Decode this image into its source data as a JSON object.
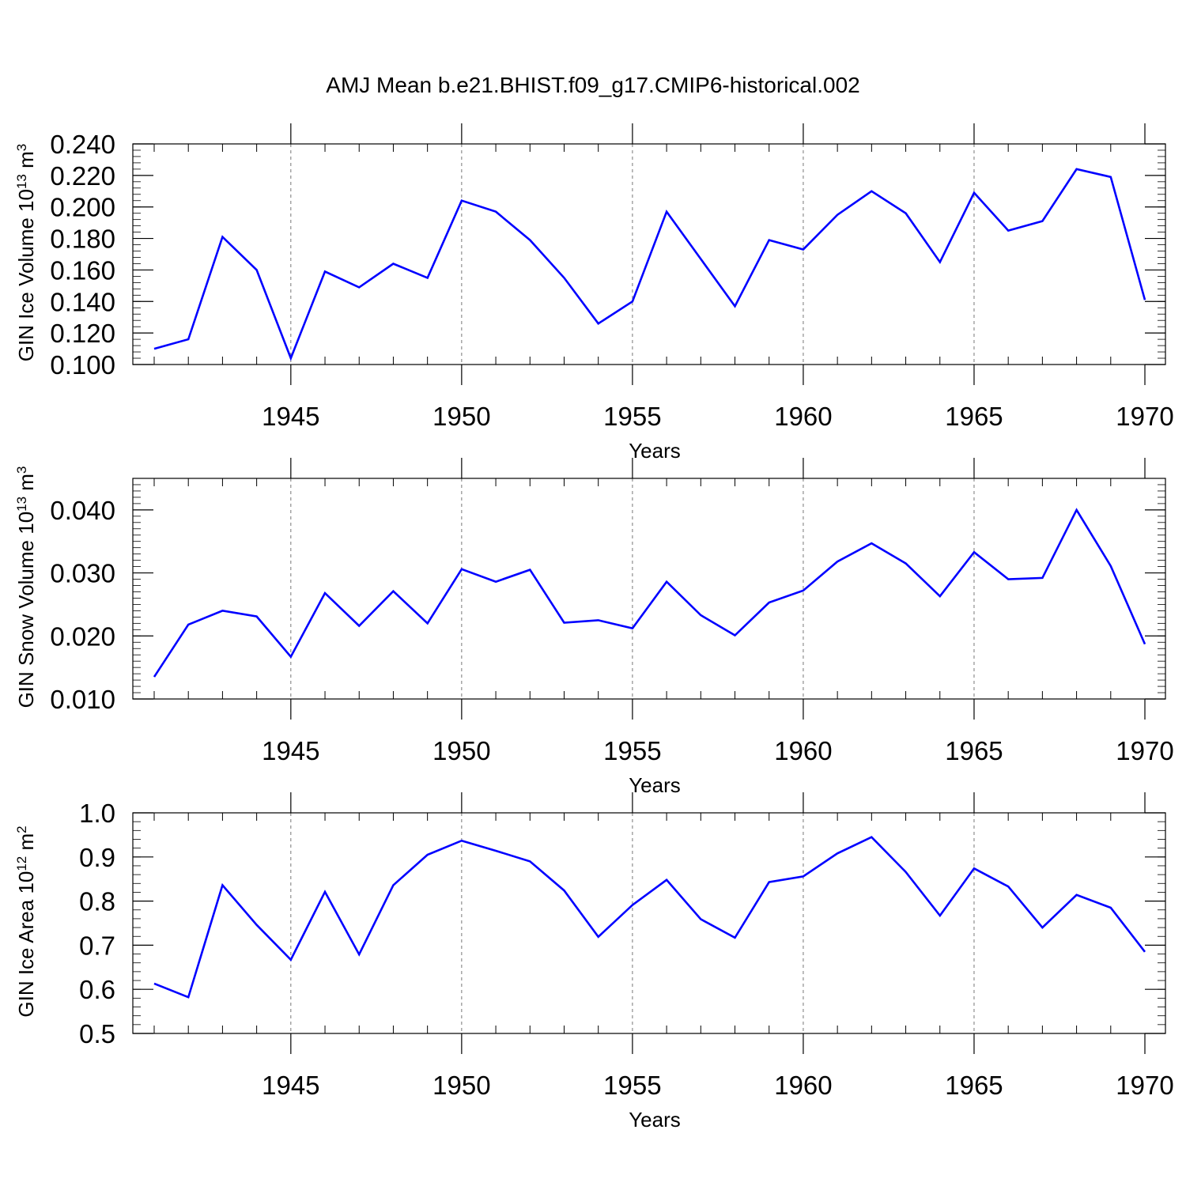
{
  "title": "AMJ Mean b.e21.BHIST.f09_g17.CMIP6-historical.002",
  "line_color": "#0000ff",
  "chart_data": [
    {
      "type": "line",
      "ylabel": "GIN Ice Volume 10",
      "ylabel_exp": "13",
      "ylabel_unit": " m",
      "ylabel_unit_exp": "3",
      "xlabel": "Years",
      "xlim": [
        1941,
        1970
      ],
      "ylim": [
        0.1,
        0.24
      ],
      "xticks": [
        1945,
        1950,
        1955,
        1960,
        1965,
        1970
      ],
      "xtick_labels": [
        "1945",
        "1950",
        "1955",
        "1960",
        "1965",
        "1970"
      ],
      "yticks": [
        0.1,
        0.12,
        0.14,
        0.16,
        0.18,
        0.2,
        0.22,
        0.24
      ],
      "ytick_labels": [
        "0.100",
        "0.120",
        "0.140",
        "0.160",
        "0.180",
        "0.200",
        "0.220",
        "0.240"
      ],
      "yminor_step": 0.004,
      "x": [
        1941,
        1942,
        1943,
        1944,
        1945,
        1946,
        1947,
        1948,
        1949,
        1950,
        1951,
        1952,
        1953,
        1954,
        1955,
        1956,
        1957,
        1958,
        1959,
        1960,
        1961,
        1962,
        1963,
        1964,
        1965,
        1966,
        1967,
        1968,
        1969,
        1970
      ],
      "values": [
        0.11,
        0.116,
        0.181,
        0.16,
        0.104,
        0.159,
        0.149,
        0.164,
        0.155,
        0.204,
        0.197,
        0.179,
        0.155,
        0.126,
        0.14,
        0.197,
        0.167,
        0.137,
        0.179,
        0.173,
        0.195,
        0.21,
        0.196,
        0.165,
        0.209,
        0.185,
        0.191,
        0.224,
        0.219,
        0.141
      ]
    },
    {
      "type": "line",
      "ylabel": "GIN Snow Volume 10",
      "ylabel_exp": "13",
      "ylabel_unit": " m",
      "ylabel_unit_exp": "3",
      "xlabel": "Years",
      "xlim": [
        1941,
        1970
      ],
      "ylim": [
        0.01,
        0.045
      ],
      "xticks": [
        1945,
        1950,
        1955,
        1960,
        1965,
        1970
      ],
      "xtick_labels": [
        "1945",
        "1950",
        "1955",
        "1960",
        "1965",
        "1970"
      ],
      "yticks": [
        0.01,
        0.02,
        0.03,
        0.04
      ],
      "ytick_labels": [
        "0.010",
        "0.020",
        "0.030",
        "0.040"
      ],
      "yminor_step": 0.001,
      "x": [
        1941,
        1942,
        1943,
        1944,
        1945,
        1946,
        1947,
        1948,
        1949,
        1950,
        1951,
        1952,
        1953,
        1954,
        1955,
        1956,
        1957,
        1958,
        1959,
        1960,
        1961,
        1962,
        1963,
        1964,
        1965,
        1966,
        1967,
        1968,
        1969,
        1970
      ],
      "values": [
        0.0135,
        0.0218,
        0.024,
        0.0231,
        0.0167,
        0.0268,
        0.0216,
        0.0271,
        0.022,
        0.0306,
        0.0286,
        0.0305,
        0.0221,
        0.0225,
        0.0212,
        0.0286,
        0.0233,
        0.0201,
        0.0253,
        0.0272,
        0.0318,
        0.0347,
        0.0315,
        0.0263,
        0.0333,
        0.029,
        0.0292,
        0.04,
        0.0311,
        0.0187
      ]
    },
    {
      "type": "line",
      "ylabel": "GIN Ice Area 10",
      "ylabel_exp": "12",
      "ylabel_unit": " m",
      "ylabel_unit_exp": "2",
      "xlabel": "Years",
      "xlim": [
        1941,
        1970
      ],
      "ylim": [
        0.5,
        1.0
      ],
      "xticks": [
        1945,
        1950,
        1955,
        1960,
        1965,
        1970
      ],
      "xtick_labels": [
        "1945",
        "1950",
        "1955",
        "1960",
        "1965",
        "1970"
      ],
      "yticks": [
        0.5,
        0.6,
        0.7,
        0.8,
        0.9,
        1.0
      ],
      "ytick_labels": [
        "0.5",
        "0.6",
        "0.7",
        "0.8",
        "0.9",
        "1.0"
      ],
      "yminor_step": 0.02,
      "x": [
        1941,
        1942,
        1943,
        1944,
        1945,
        1946,
        1947,
        1948,
        1949,
        1950,
        1951,
        1952,
        1953,
        1954,
        1955,
        1956,
        1957,
        1958,
        1959,
        1960,
        1961,
        1962,
        1963,
        1964,
        1965,
        1966,
        1967,
        1968,
        1969,
        1970
      ],
      "values": [
        0.613,
        0.582,
        0.836,
        0.746,
        0.667,
        0.821,
        0.679,
        0.836,
        0.905,
        0.937,
        0.914,
        0.89,
        0.824,
        0.719,
        0.791,
        0.848,
        0.759,
        0.717,
        0.843,
        0.856,
        0.908,
        0.945,
        0.866,
        0.767,
        0.874,
        0.833,
        0.74,
        0.814,
        0.785,
        0.685
      ]
    }
  ]
}
